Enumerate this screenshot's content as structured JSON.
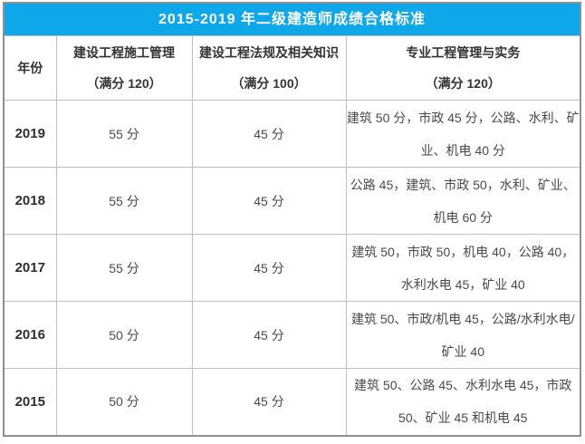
{
  "title": "2015-2019 年二级建造师成绩合格标准",
  "colors": {
    "title_bg": "#0ea7e9",
    "title_text": "#ffffff",
    "outer_border": "#8f8f8f",
    "grid_border": "#bebebe",
    "heading_text": "#333333",
    "body_text": "#4a4a4a"
  },
  "table": {
    "header_cells": [
      {
        "line1": "年份",
        "line2": ""
      },
      {
        "line1": "建设工程施工管理",
        "line2": "（满分 120）"
      },
      {
        "line1": "建设工程法规及相关知识",
        "line2": "（满分 100）"
      },
      {
        "line1": "专业工程管理与实务",
        "line2": "（满分 120）"
      }
    ],
    "rows": [
      {
        "year": "2019",
        "management": "55 分",
        "law": "45 分",
        "practice": "建筑 50 分，市政 45 分，公路、水利、矿业、机电 40 分"
      },
      {
        "year": "2018",
        "management": "55 分",
        "law": "45 分",
        "practice": "公路 45，建筑、市政 50，水利、矿业、机电 60 分"
      },
      {
        "year": "2017",
        "management": "55 分",
        "law": "45 分",
        "practice": "建筑 50，市政 50，机电 40，公路 40，水利水电 45，矿业 40"
      },
      {
        "year": "2016",
        "management": "50 分",
        "law": "45 分",
        "practice": "建筑 50、市政/机电 45，公路/水利水电/矿业 40"
      },
      {
        "year": "2015",
        "management": "50 分",
        "law": "45 分",
        "practice": "建筑 50、公路 45、水利水电 45，市政 50、矿业 45 和机电 45"
      }
    ]
  },
  "chart_data": {
    "type": "table",
    "title": "2015-2019 年二级建造师成绩合格标准",
    "columns": [
      "年份",
      "建设工程施工管理（满分 120）",
      "建设工程法规及相关知识（满分 100）",
      "专业工程管理与实务（满分 120）"
    ],
    "rows": [
      [
        "2019",
        "55 分",
        "45 分",
        "建筑 50 分，市政 45 分，公路、水利、矿业、机电 40 分"
      ],
      [
        "2018",
        "55 分",
        "45 分",
        "公路 45，建筑、市政 50，水利、矿业、机电 60 分"
      ],
      [
        "2017",
        "55 分",
        "45 分",
        "建筑 50，市政 50，机电 40，公路 40，水利水电 45，矿业 40"
      ],
      [
        "2016",
        "50 分",
        "45 分",
        "建筑 50、市政/机电 45，公路/水利水电/矿业 40"
      ],
      [
        "2015",
        "50 分",
        "45 分",
        "建筑 50、公路 45、水利水电 45，市政 50、矿业 45 和机电 45"
      ]
    ],
    "management_scores": [
      55,
      55,
      55,
      50,
      50
    ],
    "law_scores": [
      45,
      45,
      45,
      45,
      45
    ],
    "full_marks": {
      "management": 120,
      "law": 100,
      "practice": 120
    }
  }
}
